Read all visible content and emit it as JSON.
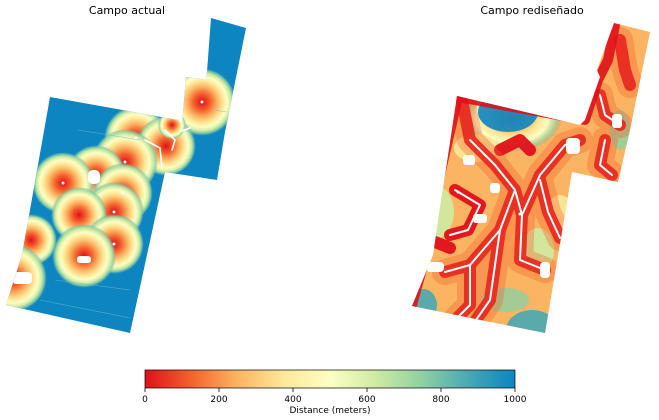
{
  "chart_data": {
    "type": "heatmap",
    "panels": [
      {
        "title": "Campo actual"
      },
      {
        "title": "Campo rediseñado"
      }
    ],
    "colorbar": {
      "label": "Distance (meters)",
      "range": [
        0,
        1000
      ],
      "ticks": [
        0,
        200,
        400,
        600,
        800,
        1000
      ],
      "tick_labels": [
        "0",
        "200",
        "400",
        "600",
        "800",
        "1000"
      ],
      "colormap": [
        "#e0101a",
        "#f4622e",
        "#fbb462",
        "#fee89a",
        "#fdfec3",
        "#cdeba3",
        "#8fcfa4",
        "#48a8b4",
        "#0c85c1"
      ]
    }
  }
}
